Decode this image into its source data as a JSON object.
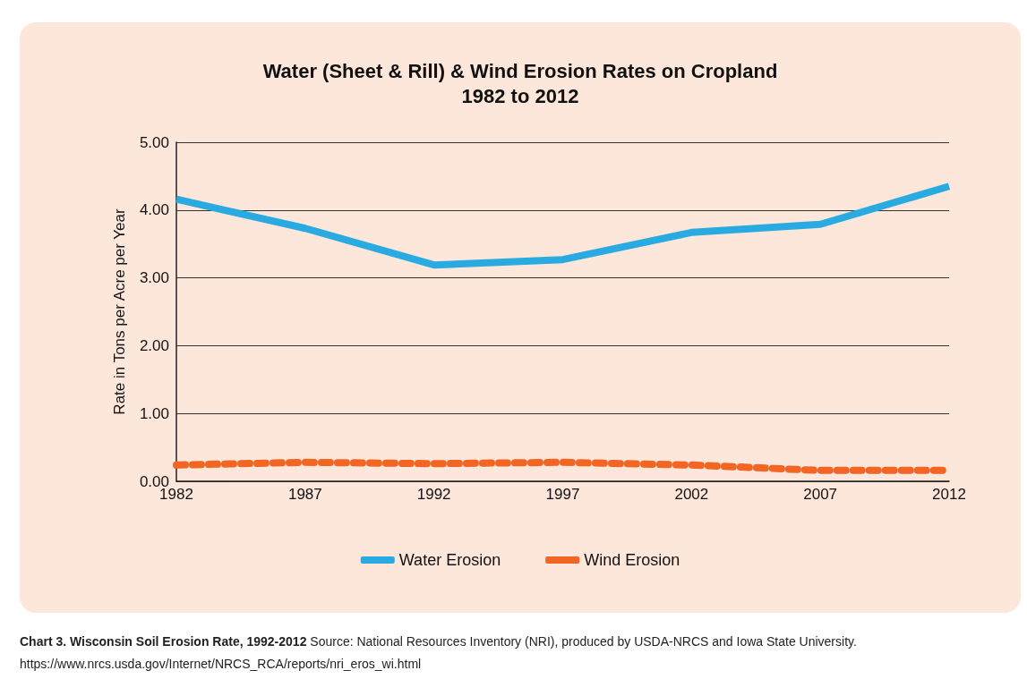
{
  "chart_data": {
    "type": "line",
    "title": "Water (Sheet & Rill) & Wind Erosion Rates on Cropland",
    "subtitle": "1982 to 2012",
    "ylabel": "Rate in Tons per Acre per Year",
    "categories": [
      "1982",
      "1987",
      "1992",
      "1997",
      "2002",
      "2007",
      "2012"
    ],
    "series": [
      {
        "name": "Water Erosion",
        "color": "#29abe2",
        "line_style": "solid",
        "values": [
          4.16,
          3.73,
          3.19,
          3.27,
          3.67,
          3.79,
          4.35
        ]
      },
      {
        "name": "Wind Erosion",
        "color": "#f26522",
        "line_style": "dashed",
        "values": [
          0.24,
          0.28,
          0.26,
          0.28,
          0.24,
          0.16,
          0.16
        ]
      }
    ],
    "ylim": [
      0,
      5
    ],
    "yticks": [
      {
        "value": 0,
        "label": "0.00"
      },
      {
        "value": 1,
        "label": "1.00"
      },
      {
        "value": 2,
        "label": "2.00"
      },
      {
        "value": 3,
        "label": "3.00"
      },
      {
        "value": 4,
        "label": "4.00"
      },
      {
        "value": 5,
        "label": "5.00"
      }
    ],
    "grid": "y",
    "legend": "bottom",
    "marker": "none",
    "annotations": [
      "Chart 3. Wisconsin Soil Erosion Rate, 1992-2012",
      "Source: National Resources Inventory (NRI), produced by USDA-NRCS and Iowa State University.",
      "https://www.nrcs.usda.gov/Internet/NRCS_RCA/reports/nri_eros_wi.html"
    ]
  }
}
